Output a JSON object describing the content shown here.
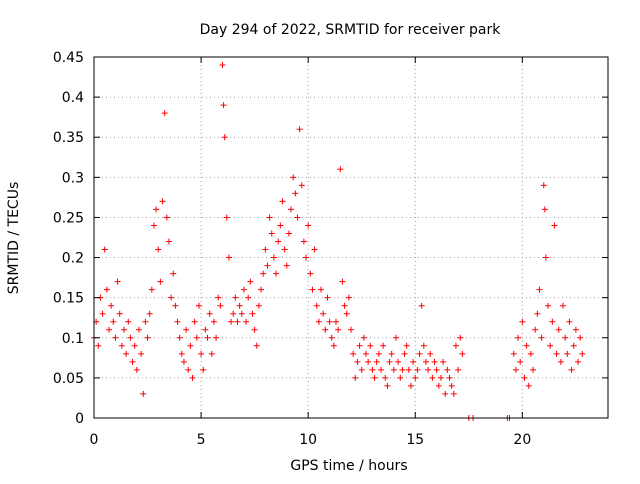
{
  "chart_data": {
    "type": "scatter",
    "title": "Day 294 of 2022, SRMTID for receiver park",
    "xlabel": "GPS time / hours",
    "ylabel": "SRMTID / TECUs",
    "xlim": [
      0,
      24
    ],
    "ylim": [
      0,
      0.45
    ],
    "xticks": [
      0,
      5,
      10,
      15,
      20
    ],
    "xtick_labels": [
      "0",
      "5",
      "10",
      "15",
      "20"
    ],
    "yticks": [
      0,
      0.05,
      0.1,
      0.15,
      0.2,
      0.25,
      0.3,
      0.35,
      0.4,
      0.45
    ],
    "ytick_labels": [
      "0",
      "0.05",
      "0.1",
      "0.15",
      "0.2",
      "0.25",
      "0.3",
      "0.35",
      "0.4",
      "0.45"
    ],
    "grid": true,
    "marker": "+",
    "color": "#ff0000",
    "series": [
      {
        "name": "SRMTID",
        "points": [
          [
            0.0,
            0.1
          ],
          [
            0.1,
            0.12
          ],
          [
            0.2,
            0.09
          ],
          [
            0.3,
            0.15
          ],
          [
            0.4,
            0.13
          ],
          [
            0.5,
            0.21
          ],
          [
            0.6,
            0.16
          ],
          [
            0.7,
            0.11
          ],
          [
            0.8,
            0.14
          ],
          [
            0.9,
            0.12
          ],
          [
            1.0,
            0.1
          ],
          [
            1.1,
            0.17
          ],
          [
            1.2,
            0.13
          ],
          [
            1.3,
            0.09
          ],
          [
            1.4,
            0.11
          ],
          [
            1.5,
            0.08
          ],
          [
            1.6,
            0.12
          ],
          [
            1.7,
            0.1
          ],
          [
            1.8,
            0.07
          ],
          [
            1.9,
            0.09
          ],
          [
            2.0,
            0.06
          ],
          [
            2.1,
            0.11
          ],
          [
            2.2,
            0.08
          ],
          [
            2.3,
            0.03
          ],
          [
            2.4,
            0.12
          ],
          [
            2.5,
            0.1
          ],
          [
            2.6,
            0.13
          ],
          [
            2.7,
            0.16
          ],
          [
            2.8,
            0.24
          ],
          [
            2.9,
            0.26
          ],
          [
            3.0,
            0.21
          ],
          [
            3.1,
            0.17
          ],
          [
            3.2,
            0.27
          ],
          [
            3.3,
            0.38
          ],
          [
            3.4,
            0.25
          ],
          [
            3.5,
            0.22
          ],
          [
            3.6,
            0.15
          ],
          [
            3.7,
            0.18
          ],
          [
            3.8,
            0.14
          ],
          [
            3.9,
            0.12
          ],
          [
            4.0,
            0.1
          ],
          [
            4.1,
            0.08
          ],
          [
            4.2,
            0.07
          ],
          [
            4.3,
            0.11
          ],
          [
            4.4,
            0.06
          ],
          [
            4.5,
            0.09
          ],
          [
            4.6,
            0.05
          ],
          [
            4.7,
            0.12
          ],
          [
            4.8,
            0.1
          ],
          [
            4.9,
            0.14
          ],
          [
            5.0,
            0.08
          ],
          [
            5.1,
            0.06
          ],
          [
            5.2,
            0.11
          ],
          [
            5.3,
            0.1
          ],
          [
            5.4,
            0.13
          ],
          [
            5.5,
            0.08
          ],
          [
            5.6,
            0.12
          ],
          [
            5.7,
            0.1
          ],
          [
            5.8,
            0.15
          ],
          [
            5.9,
            0.14
          ],
          [
            6.0,
            0.44
          ],
          [
            6.05,
            0.39
          ],
          [
            6.1,
            0.35
          ],
          [
            6.2,
            0.25
          ],
          [
            6.3,
            0.2
          ],
          [
            6.4,
            0.12
          ],
          [
            6.5,
            0.13
          ],
          [
            6.6,
            0.15
          ],
          [
            6.7,
            0.12
          ],
          [
            6.8,
            0.14
          ],
          [
            6.9,
            0.13
          ],
          [
            7.0,
            0.16
          ],
          [
            7.1,
            0.12
          ],
          [
            7.2,
            0.15
          ],
          [
            7.3,
            0.17
          ],
          [
            7.4,
            0.13
          ],
          [
            7.5,
            0.11
          ],
          [
            7.6,
            0.09
          ],
          [
            7.7,
            0.14
          ],
          [
            7.8,
            0.16
          ],
          [
            7.9,
            0.18
          ],
          [
            8.0,
            0.21
          ],
          [
            8.1,
            0.19
          ],
          [
            8.2,
            0.25
          ],
          [
            8.3,
            0.23
          ],
          [
            8.4,
            0.2
          ],
          [
            8.5,
            0.18
          ],
          [
            8.6,
            0.22
          ],
          [
            8.7,
            0.24
          ],
          [
            8.8,
            0.27
          ],
          [
            8.9,
            0.21
          ],
          [
            9.0,
            0.19
          ],
          [
            9.1,
            0.23
          ],
          [
            9.2,
            0.26
          ],
          [
            9.3,
            0.3
          ],
          [
            9.4,
            0.28
          ],
          [
            9.5,
            0.25
          ],
          [
            9.6,
            0.36
          ],
          [
            9.7,
            0.29
          ],
          [
            9.8,
            0.22
          ],
          [
            9.9,
            0.2
          ],
          [
            10.0,
            0.24
          ],
          [
            10.1,
            0.18
          ],
          [
            10.2,
            0.16
          ],
          [
            10.3,
            0.21
          ],
          [
            10.4,
            0.14
          ],
          [
            10.5,
            0.12
          ],
          [
            10.6,
            0.16
          ],
          [
            10.7,
            0.13
          ],
          [
            10.8,
            0.11
          ],
          [
            10.9,
            0.15
          ],
          [
            11.0,
            0.12
          ],
          [
            11.1,
            0.1
          ],
          [
            11.2,
            0.09
          ],
          [
            11.3,
            0.12
          ],
          [
            11.4,
            0.11
          ],
          [
            11.5,
            0.31
          ],
          [
            11.6,
            0.17
          ],
          [
            11.7,
            0.14
          ],
          [
            11.8,
            0.13
          ],
          [
            11.9,
            0.15
          ],
          [
            12.0,
            0.11
          ],
          [
            12.1,
            0.08
          ],
          [
            12.2,
            0.05
          ],
          [
            12.3,
            0.07
          ],
          [
            12.4,
            0.09
          ],
          [
            12.5,
            0.06
          ],
          [
            12.6,
            0.1
          ],
          [
            12.7,
            0.08
          ],
          [
            12.8,
            0.07
          ],
          [
            12.9,
            0.09
          ],
          [
            13.0,
            0.06
          ],
          [
            13.1,
            0.05
          ],
          [
            13.2,
            0.07
          ],
          [
            13.3,
            0.08
          ],
          [
            13.4,
            0.06
          ],
          [
            13.5,
            0.09
          ],
          [
            13.6,
            0.05
          ],
          [
            13.7,
            0.04
          ],
          [
            13.8,
            0.07
          ],
          [
            13.9,
            0.08
          ],
          [
            14.0,
            0.06
          ],
          [
            14.1,
            0.1
          ],
          [
            14.2,
            0.07
          ],
          [
            14.3,
            0.05
          ],
          [
            14.4,
            0.06
          ],
          [
            14.5,
            0.08
          ],
          [
            14.6,
            0.09
          ],
          [
            14.7,
            0.06
          ],
          [
            14.8,
            0.04
          ],
          [
            14.9,
            0.07
          ],
          [
            15.0,
            0.05
          ],
          [
            15.1,
            0.06
          ],
          [
            15.2,
            0.08
          ],
          [
            15.3,
            0.14
          ],
          [
            15.4,
            0.09
          ],
          [
            15.5,
            0.07
          ],
          [
            15.6,
            0.06
          ],
          [
            15.7,
            0.08
          ],
          [
            15.8,
            0.05
          ],
          [
            15.9,
            0.07
          ],
          [
            16.0,
            0.06
          ],
          [
            16.1,
            0.04
          ],
          [
            16.2,
            0.05
          ],
          [
            16.3,
            0.07
          ],
          [
            16.4,
            0.03
          ],
          [
            16.5,
            0.06
          ],
          [
            16.6,
            0.05
          ],
          [
            16.7,
            0.04
          ],
          [
            16.8,
            0.03
          ],
          [
            16.9,
            0.09
          ],
          [
            17.0,
            0.06
          ],
          [
            17.1,
            0.1
          ],
          [
            17.2,
            0.08
          ],
          [
            17.5,
            0.0
          ],
          [
            17.7,
            0.0
          ],
          [
            19.3,
            0.0
          ],
          [
            19.4,
            0.0
          ],
          [
            19.6,
            0.08
          ],
          [
            19.7,
            0.06
          ],
          [
            19.8,
            0.1
          ],
          [
            19.9,
            0.07
          ],
          [
            20.0,
            0.12
          ],
          [
            20.1,
            0.05
          ],
          [
            20.2,
            0.09
          ],
          [
            20.3,
            0.04
          ],
          [
            20.4,
            0.08
          ],
          [
            20.5,
            0.06
          ],
          [
            20.6,
            0.11
          ],
          [
            20.7,
            0.13
          ],
          [
            20.8,
            0.16
          ],
          [
            20.9,
            0.1
          ],
          [
            21.0,
            0.29
          ],
          [
            21.05,
            0.26
          ],
          [
            21.1,
            0.2
          ],
          [
            21.2,
            0.14
          ],
          [
            21.3,
            0.09
          ],
          [
            21.4,
            0.12
          ],
          [
            21.5,
            0.24
          ],
          [
            21.6,
            0.08
          ],
          [
            21.7,
            0.11
          ],
          [
            21.8,
            0.07
          ],
          [
            21.9,
            0.14
          ],
          [
            22.0,
            0.1
          ],
          [
            22.1,
            0.08
          ],
          [
            22.2,
            0.12
          ],
          [
            22.3,
            0.06
          ],
          [
            22.4,
            0.09
          ],
          [
            22.5,
            0.11
          ],
          [
            22.6,
            0.07
          ],
          [
            22.7,
            0.1
          ],
          [
            22.8,
            0.08
          ]
        ]
      }
    ]
  }
}
